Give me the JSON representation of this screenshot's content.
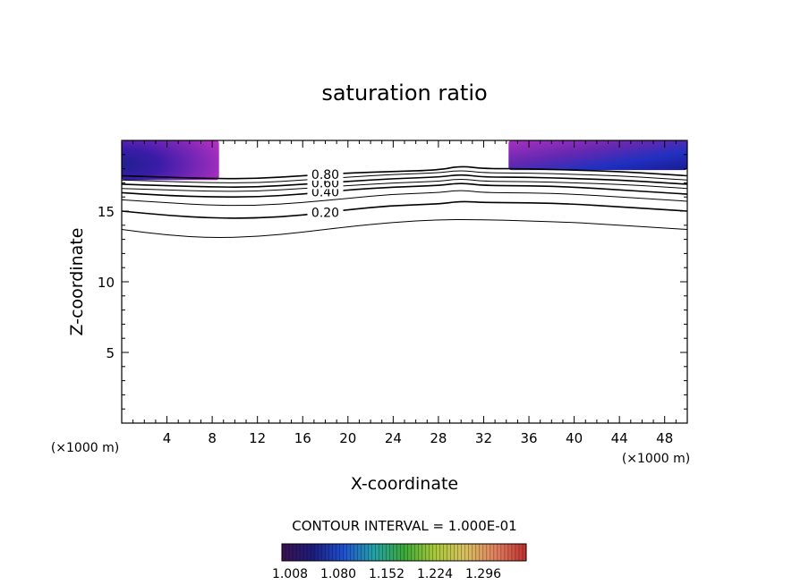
{
  "chart_data": {
    "type": "contour",
    "title": "saturation ratio",
    "xlabel": "X-coordinate",
    "ylabel": "Z-coordinate",
    "x_unit_left": "(×1000 m)",
    "x_unit_right": "(×1000 m)",
    "xlim": [
      0,
      50
    ],
    "ylim": [
      0,
      20
    ],
    "xticks": [
      4,
      8,
      12,
      16,
      20,
      24,
      28,
      32,
      36,
      40,
      44,
      48
    ],
    "yticks": [
      5,
      10,
      15
    ],
    "contour_interval_text": "CONTOUR INTERVAL = 1.000E-01",
    "contour_lines": [
      {
        "level": 0.1,
        "label": "",
        "points": [
          [
            0,
            13.7
          ],
          [
            4,
            13.3
          ],
          [
            8,
            13.1
          ],
          [
            12,
            13.2
          ],
          [
            16,
            13.5
          ],
          [
            20,
            13.9
          ],
          [
            24,
            14.2
          ],
          [
            28,
            14.4
          ],
          [
            32,
            14.4
          ],
          [
            36,
            14.3
          ],
          [
            40,
            14.2
          ],
          [
            44,
            14.0
          ],
          [
            48,
            13.8
          ],
          [
            50,
            13.7
          ]
        ]
      },
      {
        "level": 0.2,
        "label": "0.20",
        "points": [
          [
            0,
            15.0
          ],
          [
            4,
            14.7
          ],
          [
            8,
            14.5
          ],
          [
            12,
            14.5
          ],
          [
            16,
            14.7
          ],
          [
            20,
            15.1
          ],
          [
            24,
            15.4
          ],
          [
            28,
            15.5
          ],
          [
            30,
            15.7
          ],
          [
            32,
            15.6
          ],
          [
            36,
            15.6
          ],
          [
            40,
            15.5
          ],
          [
            44,
            15.3
          ],
          [
            48,
            15.1
          ],
          [
            50,
            15.0
          ]
        ]
      },
      {
        "level": 0.3,
        "label": "",
        "points": [
          [
            0,
            15.8
          ],
          [
            4,
            15.6
          ],
          [
            8,
            15.4
          ],
          [
            12,
            15.4
          ],
          [
            16,
            15.6
          ],
          [
            20,
            15.9
          ],
          [
            24,
            16.2
          ],
          [
            28,
            16.3
          ],
          [
            30,
            16.5
          ],
          [
            32,
            16.3
          ],
          [
            36,
            16.3
          ],
          [
            40,
            16.2
          ],
          [
            44,
            16.0
          ],
          [
            48,
            15.8
          ],
          [
            50,
            15.7
          ]
        ]
      },
      {
        "level": 0.4,
        "label": "0.40",
        "points": [
          [
            0,
            16.3
          ],
          [
            4,
            16.1
          ],
          [
            8,
            16.0
          ],
          [
            12,
            16.0
          ],
          [
            16,
            16.2
          ],
          [
            20,
            16.5
          ],
          [
            24,
            16.7
          ],
          [
            28,
            16.8
          ],
          [
            30,
            17.0
          ],
          [
            32,
            16.8
          ],
          [
            36,
            16.8
          ],
          [
            40,
            16.7
          ],
          [
            44,
            16.5
          ],
          [
            48,
            16.3
          ],
          [
            50,
            16.2
          ]
        ]
      },
      {
        "level": 0.5,
        "label": "",
        "points": [
          [
            0,
            16.6
          ],
          [
            4,
            16.5
          ],
          [
            8,
            16.4
          ],
          [
            12,
            16.4
          ],
          [
            16,
            16.6
          ],
          [
            20,
            16.8
          ],
          [
            24,
            17.0
          ],
          [
            28,
            17.1
          ],
          [
            30,
            17.3
          ],
          [
            32,
            17.1
          ],
          [
            36,
            17.1
          ],
          [
            40,
            17.0
          ],
          [
            44,
            16.9
          ],
          [
            48,
            16.7
          ],
          [
            50,
            16.6
          ]
        ]
      },
      {
        "level": 0.6,
        "label": "0.60",
        "points": [
          [
            0,
            16.9
          ],
          [
            4,
            16.8
          ],
          [
            8,
            16.7
          ],
          [
            12,
            16.7
          ],
          [
            16,
            16.9
          ],
          [
            20,
            17.1
          ],
          [
            24,
            17.3
          ],
          [
            28,
            17.4
          ],
          [
            30,
            17.6
          ],
          [
            32,
            17.4
          ],
          [
            36,
            17.4
          ],
          [
            40,
            17.3
          ],
          [
            44,
            17.2
          ],
          [
            48,
            17.0
          ],
          [
            50,
            16.9
          ]
        ]
      },
      {
        "level": 0.7,
        "label": "",
        "points": [
          [
            0,
            17.2
          ],
          [
            4,
            17.1
          ],
          [
            8,
            17.0
          ],
          [
            12,
            17.0
          ],
          [
            16,
            17.2
          ],
          [
            20,
            17.4
          ],
          [
            24,
            17.6
          ],
          [
            28,
            17.7
          ],
          [
            30,
            17.9
          ],
          [
            32,
            17.7
          ],
          [
            36,
            17.7
          ],
          [
            40,
            17.6
          ],
          [
            44,
            17.5
          ],
          [
            48,
            17.3
          ],
          [
            50,
            17.2
          ]
        ]
      },
      {
        "level": 0.8,
        "label": "0.80",
        "points": [
          [
            0,
            17.5
          ],
          [
            4,
            17.4
          ],
          [
            8,
            17.3
          ],
          [
            12,
            17.3
          ],
          [
            16,
            17.5
          ],
          [
            20,
            17.7
          ],
          [
            24,
            17.8
          ],
          [
            28,
            17.9
          ],
          [
            30,
            18.2
          ],
          [
            32,
            18.0
          ],
          [
            36,
            18.0
          ],
          [
            40,
            17.9
          ],
          [
            44,
            17.8
          ],
          [
            48,
            17.6
          ],
          [
            50,
            17.5
          ]
        ]
      }
    ],
    "supersaturated_regions": [
      {
        "x": [
          0,
          8.6
        ],
        "z": [
          17.2,
          20
        ]
      },
      {
        "x": [
          34.2,
          50
        ],
        "z": [
          17.9,
          20
        ]
      }
    ],
    "colorbar": {
      "ticks": [
        "1.008",
        "1.080",
        "1.152",
        "1.224",
        "1.296"
      ],
      "colors": [
        "#3a1250",
        "#1c1c7c",
        "#1f4fd0",
        "#24a0a8",
        "#3aa838",
        "#a8c838",
        "#d8c060",
        "#e08060",
        "#c03030"
      ]
    }
  }
}
